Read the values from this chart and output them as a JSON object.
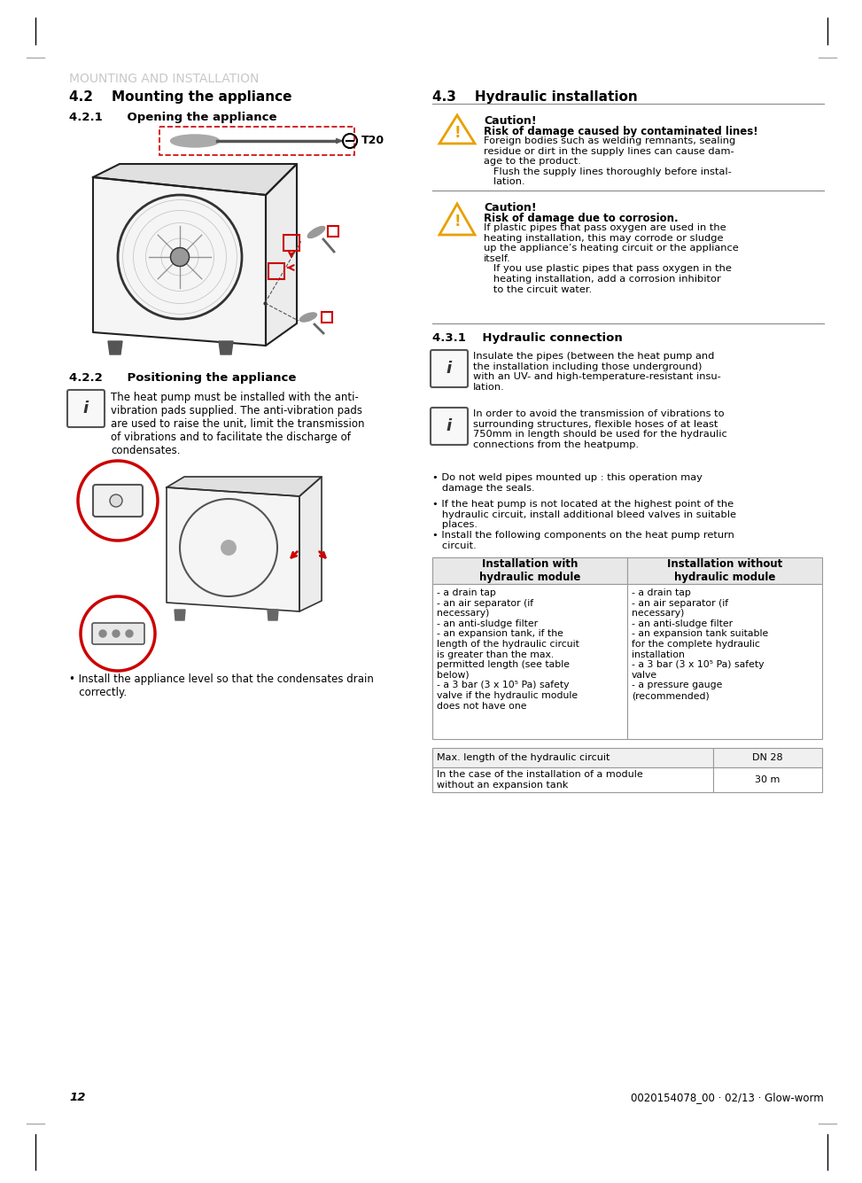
{
  "page_title": "MOUNTING AND INSTALLATION",
  "title_color": "#c8c8c8",
  "bg_color": "#ffffff",
  "text_color": "#000000",
  "red_color": "#cc0000",
  "section_42_title": "4.2    Mounting the appliance",
  "section_421_title": "4.2.1      Opening the appliance",
  "section_422_title": "4.2.2      Positioning the appliance",
  "section_43_title": "4.3    Hydraulic installation",
  "section_431_title": "4.3.1    Hydraulic connection",
  "caution1_title": "Caution!",
  "caution1_bold": "Risk of damage caused by contaminated lines!",
  "caution1_text": "Foreign bodies such as welding remnants, sealing\nresidue or dirt in the supply lines can cause dam-\nage to the product.\n   Flush the supply lines thoroughly before instal-\n   lation.",
  "caution2_title": "Caution!",
  "caution2_bold": "Risk of damage due to corrosion.",
  "caution2_text": "If plastic pipes that pass oxygen are used in the\nheating installation, this may corrode or sludge\nup the appliance’s heating circuit or the appliance\nitself.\n   If you use plastic pipes that pass oxygen in the\n   heating installation, add a corrosion inhibitor\n   to the circuit water.",
  "info1_text": "Insulate the pipes (between the heat pump and\nthe installation including those underground)\nwith an UV- and high-temperature-resistant insu-\nlation.",
  "info2_text": "In order to avoid the transmission of vibrations to\nsurrounding structures, flexible hoses of at least\n750mm in length should be used for the hydraulic\nconnections from the heatpump.",
  "bullet1": "Do not weld pipes mounted up : this operation may\n   damage the seals.",
  "bullet2": "If the heat pump is not located at the highest point of the\n   hydraulic circuit, install additional bleed valves in suitable\n   places.",
  "bullet3": "Install the following components on the heat pump return\n   circuit.",
  "position_text": "The heat pump must be installed with the anti-\nvibration pads supplied. The anti-vibration pads\nare used to raise the unit, limit the transmission\nof vibrations and to facilitate the discharge of\ncondensates.",
  "install_bullet": "Install the appliance level so that the condensates drain\n   correctly.",
  "table_header1": "Installation with\nhydraulic module",
  "table_header2": "Installation without\nhydraulic module",
  "table_col1": "- a drain tap\n- an air separator (if\nnecessary)\n- an anti-sludge filter\n- an expansion tank, if the\nlength of the hydraulic circuit\nis greater than the max.\npermitted length (see table\nbelow)\n- a 3 bar (3 x 10⁵ Pa) safety\nvalve if the hydraulic module\ndoes not have one",
  "table_col2": "- a drain tap\n- an air separator (if\nnecessary)\n- an anti-sludge filter\n- an expansion tank suitable\nfor the complete hydraulic\ninstallation\n- a 3 bar (3 x 10⁵ Pa) safety\nvalve\n- a pressure gauge\n(recommended)",
  "table2_row1_label": "Max. length of the hydraulic circuit",
  "table2_row1_val": "DN 28",
  "table2_row2_label": "In the case of the installation of a module\nwithout an expansion tank",
  "table2_row2_val": "30 m",
  "footer_page": "12",
  "footer_code": "0020154078_00 · 02/13 · Glow-worm"
}
